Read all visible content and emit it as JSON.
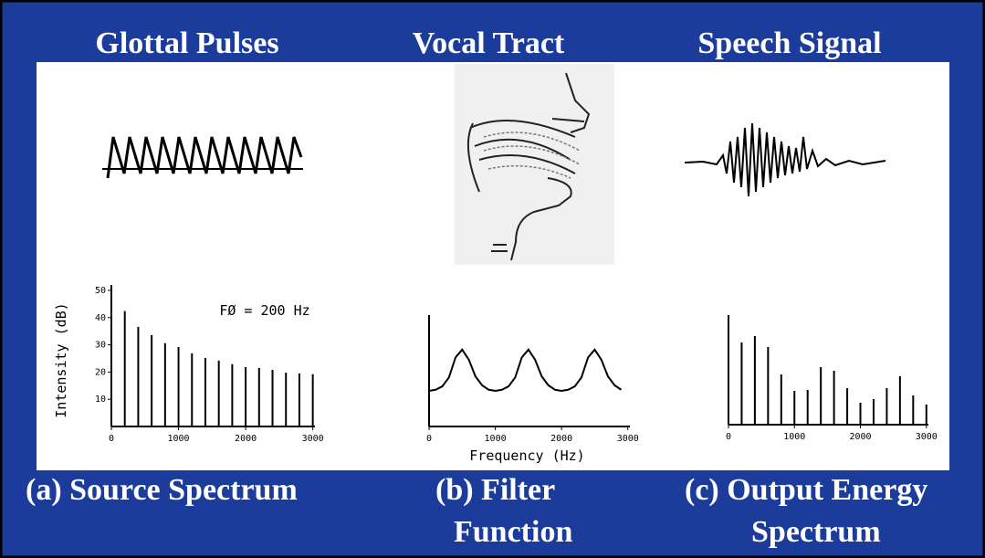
{
  "headings": [
    "Glottal Pulses",
    "Vocal Tract",
    "Speech Signal"
  ],
  "captions": [
    [
      "(a) Source Spectrum"
    ],
    [
      "(b) Filter",
      "Function"
    ],
    [
      "(c) Output Energy",
      "Spectrum"
    ]
  ],
  "chart_data": [
    {
      "type": "stem",
      "annotation": "FØ = 200 Hz",
      "y_label": "Intensity (dB)",
      "x": [
        200,
        400,
        600,
        800,
        1000,
        1200,
        1400,
        1600,
        1800,
        2000,
        2200,
        2400,
        2600,
        2800,
        3000
      ],
      "values": [
        42.4,
        36.6,
        33.6,
        30.6,
        29.2,
        26.9,
        25.2,
        24.2,
        22.9,
        21.8,
        21.5,
        20.8,
        19.8,
        19.5,
        19.2
      ],
      "xlim": [
        0,
        3100
      ],
      "xticks": [
        0,
        1000,
        2000,
        3000
      ],
      "ylim": [
        0,
        52
      ],
      "yticks": [
        10,
        20,
        30,
        40,
        50
      ]
    },
    {
      "type": "line",
      "x_label": "Frequency (Hz)",
      "x": [
        0,
        100,
        200,
        300,
        400,
        500,
        600,
        700,
        800,
        900,
        1000,
        1100,
        1200,
        1300,
        1400,
        1500,
        1600,
        1700,
        1800,
        1900,
        2000,
        2100,
        2200,
        2300,
        2400,
        2500,
        2600,
        2700,
        2800,
        2900
      ],
      "values": [
        3.2,
        3.3,
        3.6,
        4.4,
        6.2,
        6.9,
        6.0,
        4.5,
        3.7,
        3.3,
        3.2,
        3.3,
        3.6,
        4.4,
        6.2,
        6.9,
        6.0,
        4.5,
        3.7,
        3.3,
        3.2,
        3.3,
        3.6,
        4.4,
        6.2,
        6.9,
        6.0,
        4.5,
        3.7,
        3.3
      ],
      "xlim": [
        0,
        3100
      ],
      "xticks": [
        0,
        1000,
        2000,
        3000
      ],
      "ylim": [
        0,
        10
      ]
    },
    {
      "type": "stem",
      "x": [
        200,
        400,
        600,
        800,
        1000,
        1200,
        1400,
        1600,
        1800,
        2000,
        2200,
        2400,
        2600,
        2800,
        3000
      ],
      "values": [
        9,
        9.7,
        8.5,
        5.5,
        3.7,
        3.8,
        6.3,
        5.9,
        4,
        2.4,
        2.8,
        4,
        5.3,
        3.2,
        2.2
      ],
      "xlim": [
        0,
        3100
      ],
      "xticks": [
        0,
        1000,
        2000,
        3000
      ],
      "ylim": [
        0,
        12
      ]
    }
  ]
}
